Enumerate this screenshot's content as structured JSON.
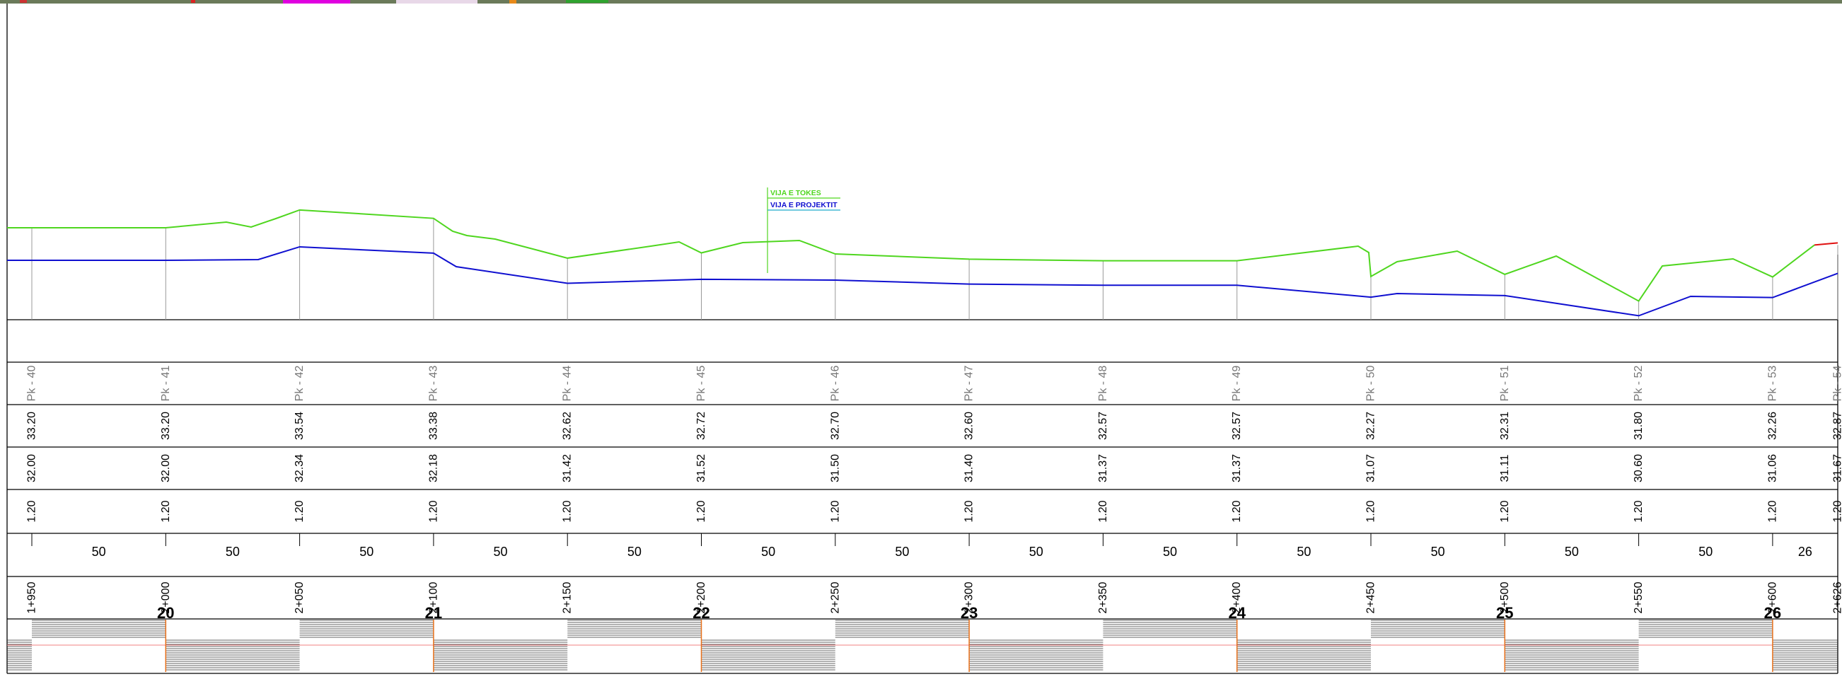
{
  "legend": {
    "existing_label": "VIJA E TOKES",
    "design_label": "VIJA E PROJEKTIT"
  },
  "colors": {
    "existing_ground": "#4fd61f",
    "design_line": "#1010d0",
    "existing_end_segment": "#e01010",
    "grid": "#000000",
    "station_tick": "#999999",
    "band_marker": "#e8701a",
    "band_guide": "#f08080"
  },
  "stations": [
    {
      "pk": "Pk - 40",
      "ground": "33.20",
      "design": "32.00",
      "depth": "1.20",
      "chainage": "1+950",
      "existing_elev": 33.2,
      "design_elev": 32.0
    },
    {
      "pk": "Pk - 41",
      "ground": "33.20",
      "design": "32.00",
      "depth": "1.20",
      "chainage": "2+000",
      "existing_elev": 33.2,
      "design_elev": 32.0,
      "section": "20"
    },
    {
      "pk": "Pk - 42",
      "ground": "33.54",
      "design": "32.34",
      "depth": "1.20",
      "chainage": "2+050",
      "existing_elev": 33.54,
      "design_elev": 32.34
    },
    {
      "pk": "Pk - 43",
      "ground": "33.38",
      "design": "32.18",
      "depth": "1.20",
      "chainage": "2+100",
      "existing_elev": 33.38,
      "design_elev": 32.18,
      "section": "21"
    },
    {
      "pk": "Pk - 44",
      "ground": "32.62",
      "design": "31.42",
      "depth": "1.20",
      "chainage": "2+150",
      "existing_elev": 32.62,
      "design_elev": 31.42
    },
    {
      "pk": "Pk - 45",
      "ground": "32.72",
      "design": "31.52",
      "depth": "1.20",
      "chainage": "2+200",
      "existing_elev": 32.72,
      "design_elev": 31.52,
      "section": "22"
    },
    {
      "pk": "Pk - 46",
      "ground": "32.70",
      "design": "31.50",
      "depth": "1.20",
      "chainage": "2+250",
      "existing_elev": 32.7,
      "design_elev": 31.5
    },
    {
      "pk": "Pk - 47",
      "ground": "32.60",
      "design": "31.40",
      "depth": "1.20",
      "chainage": "2+300",
      "existing_elev": 32.6,
      "design_elev": 31.4,
      "section": "23"
    },
    {
      "pk": "Pk - 48",
      "ground": "32.57",
      "design": "31.37",
      "depth": "1.20",
      "chainage": "2+350",
      "existing_elev": 32.57,
      "design_elev": 31.37
    },
    {
      "pk": "Pk - 49",
      "ground": "32.57",
      "design": "31.37",
      "depth": "1.20",
      "chainage": "2+400",
      "existing_elev": 32.57,
      "design_elev": 31.37,
      "section": "24"
    },
    {
      "pk": "Pk - 50",
      "ground": "32.27",
      "design": "31.07",
      "depth": "1.20",
      "chainage": "2+450",
      "existing_elev": 32.27,
      "design_elev": 31.07
    },
    {
      "pk": "Pk - 51",
      "ground": "32.31",
      "design": "31.11",
      "depth": "1.20",
      "chainage": "2+500",
      "existing_elev": 32.31,
      "design_elev": 31.11,
      "section": "25"
    },
    {
      "pk": "Pk - 52",
      "ground": "31.80",
      "design": "30.60",
      "depth": "1.20",
      "chainage": "2+550",
      "existing_elev": 31.8,
      "design_elev": 30.6
    },
    {
      "pk": "Pk - 53",
      "ground": "32.26",
      "design": "31.06",
      "depth": "1.20",
      "chainage": "2+600",
      "existing_elev": 32.26,
      "design_elev": 31.06,
      "section": "26"
    },
    {
      "pk": "Pk - 54",
      "ground": "32.87",
      "design": "31.67",
      "depth": "1.20",
      "chainage": "2+626",
      "existing_elev": 32.87,
      "design_elev": 31.67
    }
  ],
  "distances": [
    "50",
    "50",
    "50",
    "50",
    "50",
    "50",
    "50",
    "50",
    "50",
    "50",
    "50",
    "50",
    "50",
    "26"
  ]
}
